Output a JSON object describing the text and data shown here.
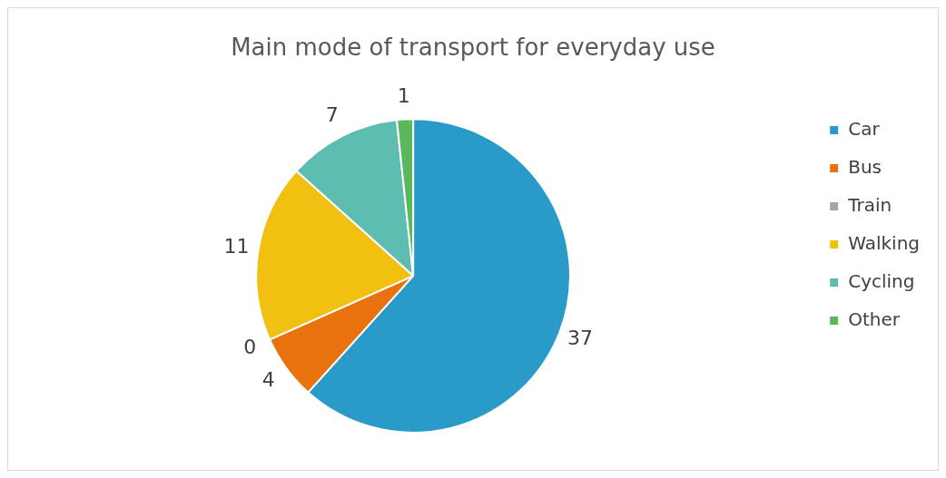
{
  "chart_data": {
    "type": "pie",
    "title": "Main mode of transport for everyday use",
    "categories": [
      "Car",
      "Bus",
      "Train",
      "Walking",
      "Cycling",
      "Other"
    ],
    "values": [
      37,
      4,
      0,
      11,
      7,
      1
    ],
    "colors": [
      "#2a9bc8",
      "#e8730e",
      "#a5a5a5",
      "#f2c010",
      "#5dbdb0",
      "#5cb85c"
    ],
    "value_labels": [
      "37",
      "4",
      "0",
      "11",
      "7",
      "1"
    ],
    "legend": "right"
  }
}
